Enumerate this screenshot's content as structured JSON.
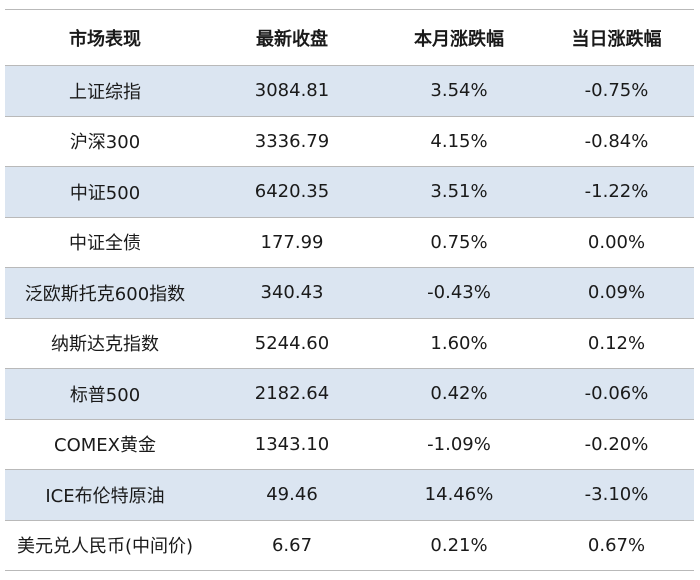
{
  "columns": [
    "市场表现",
    "最新收盘",
    "本月涨跌幅",
    "当日涨跌幅"
  ],
  "rows": [
    {
      "name": "上证综指",
      "close": "3084.81",
      "month": "3.54%",
      "day": "-0.75%"
    },
    {
      "name": "沪深300",
      "close": "3336.79",
      "month": "4.15%",
      "day": "-0.84%"
    },
    {
      "name": "中证500",
      "close": "6420.35",
      "month": "3.51%",
      "day": "-1.22%"
    },
    {
      "name": "中证全债",
      "close": "177.99",
      "month": "0.75%",
      "day": "0.00%"
    },
    {
      "name": "泛欧斯托克600指数",
      "close": "340.43",
      "month": "-0.43%",
      "day": "0.09%"
    },
    {
      "name": "纳斯达克指数",
      "close": "5244.60",
      "month": "1.60%",
      "day": "0.12%"
    },
    {
      "name": "标普500",
      "close": "2182.64",
      "month": "0.42%",
      "day": "-0.06%"
    },
    {
      "name": "COMEX黄金",
      "close": "1343.10",
      "month": "-1.09%",
      "day": "-0.20%"
    },
    {
      "name": "ICE布伦特原油",
      "close": "49.46",
      "month": "14.46%",
      "day": "-3.10%"
    },
    {
      "name": "美元兑人民币(中间价)",
      "close": "6.67",
      "month": "0.21%",
      "day": "0.67%"
    }
  ]
}
